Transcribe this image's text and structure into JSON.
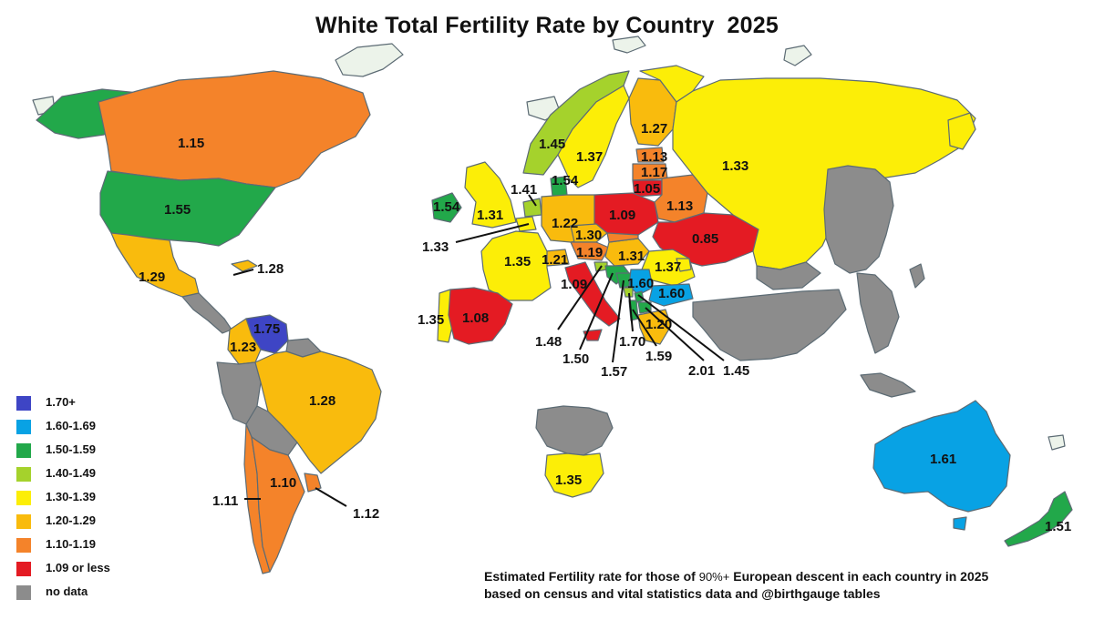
{
  "title": "White Total Fertility Rate by Country",
  "year": "2025",
  "colors": {
    "c170": "#3e45c5",
    "c160": "#08a2e4",
    "c150": "#22a84a",
    "c140": "#a5d22c",
    "c130": "#fcee07",
    "c120": "#f9bb0d",
    "c110": "#f4832a",
    "c109": "#e41b23",
    "nodata": "#8c8c8c",
    "land": "#ecf3ea"
  },
  "legend": [
    {
      "label": "1.70+",
      "color": "#3e45c5"
    },
    {
      "label": "1.60-1.69",
      "color": "#08a2e4"
    },
    {
      "label": "1.50-1.59",
      "color": "#22a84a"
    },
    {
      "label": "1.40-1.49",
      "color": "#a5d22c"
    },
    {
      "label": "1.30-1.39",
      "color": "#fcee07"
    },
    {
      "label": "1.20-1.29",
      "color": "#f9bb0d"
    },
    {
      "label": "1.10-1.19",
      "color": "#f4832a"
    },
    {
      "label": "1.09 or less",
      "color": "#e41b23"
    },
    {
      "label": "no data",
      "color": "#8c8c8c"
    }
  ],
  "values": {
    "canada": "1.15",
    "usa": "1.55",
    "mexico": "1.29",
    "caribbean": "1.28",
    "venezuela": "1.75",
    "colombia": "1.23",
    "brazil": "1.28",
    "chile": "1.11",
    "argentina": "1.10",
    "uruguay": "1.12",
    "norway": "1.45",
    "sweden": "1.37",
    "finland": "1.27",
    "estonia": "1.13",
    "latvia": "1.17",
    "lithuania": "1.05",
    "denmark": "1.54",
    "ireland": "1.54",
    "uk": "1.31",
    "netherlands": "1.41",
    "belgium": "1.33",
    "germany": "1.22",
    "poland": "1.09",
    "belarus": "1.13",
    "ukraine": "0.85",
    "russia": "1.33",
    "czechia": "1.30",
    "austria": "1.19",
    "switzerland": "1.21",
    "hungary": "1.31",
    "france": "1.35",
    "romania": "1.37",
    "serbia": "1.60",
    "bulgaria": "1.60",
    "portugal": "1.35",
    "spain": "1.08",
    "italy": "1.09",
    "slovenia": "1.48",
    "croatia": "1.50",
    "bosnia": "1.57",
    "montenegro": "1.70",
    "albania": "1.59",
    "macedonia": "2.01",
    "kosovo": "1.45",
    "greece": "1.20",
    "south_africa": "1.35",
    "australia": "1.61",
    "new_zealand": "1.51"
  },
  "note": {
    "line1_a": "Estimated Fertility rate for those of",
    "line1_b": "90%+",
    "line1_c": "European descent in each country in 2025",
    "line2": "based on census and vital statistics data and @birthgauge tables"
  }
}
